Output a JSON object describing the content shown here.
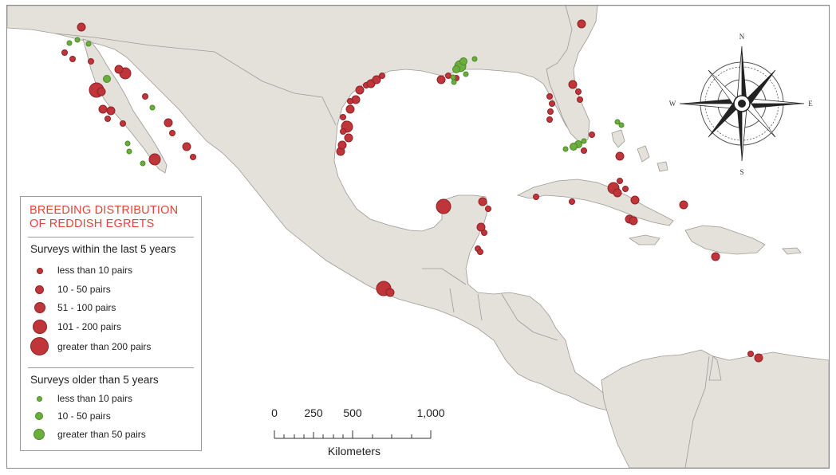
{
  "legend": {
    "title_line1": "BREEDING DISTRIBUTION",
    "title_line2": "OF REDDISH EGRETS",
    "recent_heading": "Surveys within the last 5 years",
    "recent_items": [
      {
        "label": "less than 10 pairs"
      },
      {
        "label": "10 - 50 pairs"
      },
      {
        "label": "51 - 100 pairs"
      },
      {
        "label": "101 - 200 pairs"
      },
      {
        "label": "greater than 200 pairs"
      }
    ],
    "old_heading": "Surveys older than 5 years",
    "old_items": [
      {
        "label": "less than 10 pairs"
      },
      {
        "label": "10 - 50 pairs"
      },
      {
        "label": "greater than 50 pairs"
      }
    ]
  },
  "scale": {
    "labels": [
      "0",
      "250",
      "500",
      "1,000"
    ],
    "unit": "Kilometers"
  },
  "compass": {
    "north": "N",
    "south": "S",
    "east": "E",
    "west": "W"
  },
  "colors": {
    "recent_marker": "#c0353a",
    "old_marker": "#6cae3e",
    "land": "#e4e0da",
    "water": "#ffffff",
    "legend_title": "#e0453a"
  },
  "markers": {
    "recent_class_sizes": [
      "<10",
      "10-50",
      "51-100",
      "101-200",
      ">200"
    ],
    "old_class_sizes": [
      "<10",
      "10-50",
      ">50"
    ]
  }
}
